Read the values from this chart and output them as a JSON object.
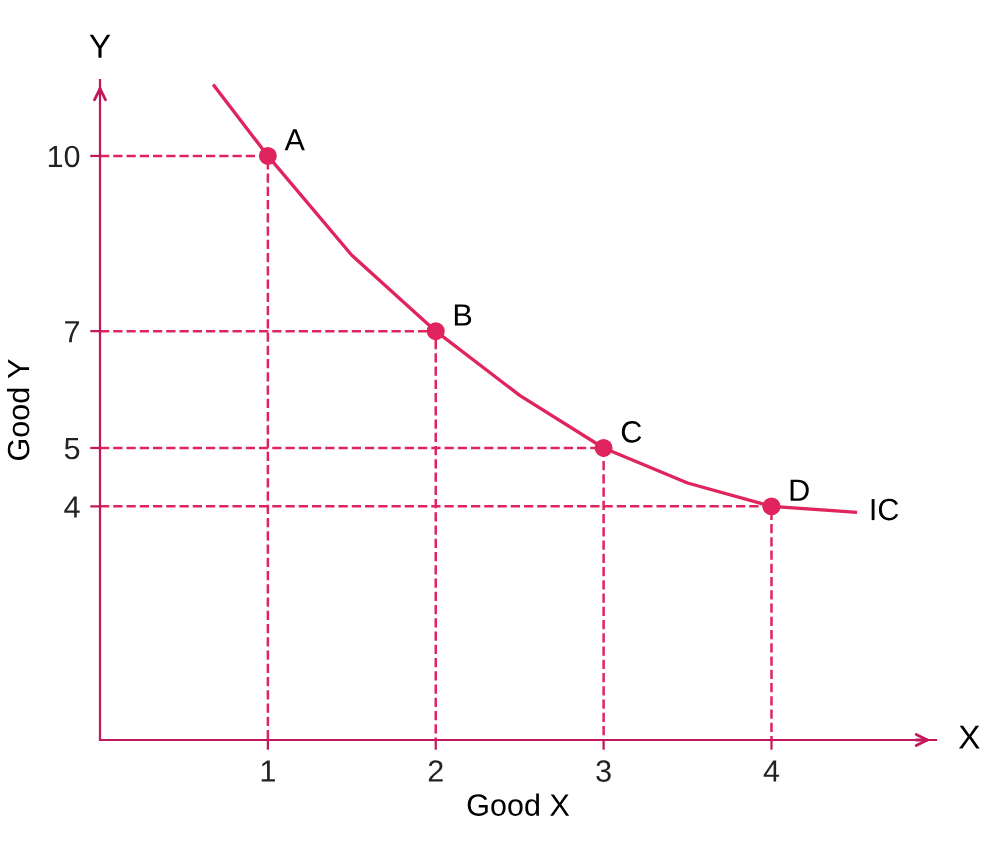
{
  "chart_data": {
    "type": "line",
    "xlabel": "Good X",
    "ylabel": "Good Y",
    "xlim": [
      0,
      4.98
    ],
    "ylim": [
      0,
      11.3
    ],
    "xticks": [
      1,
      2,
      3,
      4
    ],
    "yticks": [
      4,
      5,
      7,
      10
    ],
    "annotations": [
      "X",
      "Y",
      {
        "text": "A",
        "x": 1,
        "y": 10
      },
      {
        "text": "B",
        "x": 2,
        "y": 7
      },
      {
        "text": "C",
        "x": 3,
        "y": 5
      },
      {
        "text": "D",
        "x": 4,
        "y": 4
      }
    ],
    "series": [
      {
        "name": "IC",
        "color": "#e0245e",
        "line_style": "solid",
        "x": [
          0.68,
          1,
          1.5,
          2,
          2.5,
          3,
          3.5,
          4,
          4.5
        ],
        "values": [
          11.2,
          10,
          8.3,
          7,
          5.9,
          5,
          4.4,
          4,
          3.9
        ]
      },
      {
        "color": "#e0245e",
        "line_style": "dashed",
        "x": [
          0,
          1,
          1
        ],
        "values": [
          10,
          10,
          0
        ]
      },
      {
        "color": "#e0245e",
        "line_style": "dashed",
        "x": [
          0,
          2,
          2
        ],
        "values": [
          7,
          7,
          0
        ]
      },
      {
        "color": "#e0245e",
        "line_style": "dashed",
        "x": [
          0,
          3,
          3
        ],
        "values": [
          5,
          5,
          0
        ]
      },
      {
        "color": "#e0245e",
        "line_style": "dashed",
        "x": [
          0,
          4,
          4
        ],
        "values": [
          4,
          4,
          0
        ]
      },
      {
        "type": "scatter",
        "color": "#e0245e",
        "marker": "circle",
        "x": [
          1,
          2,
          3,
          4
        ],
        "values": [
          10,
          7,
          5,
          4
        ]
      }
    ]
  }
}
